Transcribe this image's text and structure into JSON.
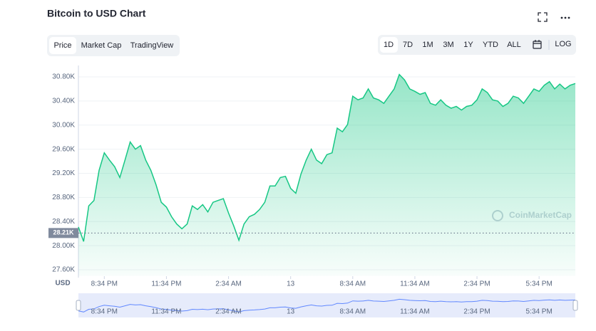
{
  "chart_data": {
    "type": "line",
    "title": "Bitcoin to USD Chart",
    "tabs": [
      "Price",
      "Market Cap",
      "TradingView"
    ],
    "ranges": [
      "1D",
      "7D",
      "1M",
      "3M",
      "1Y",
      "YTD",
      "ALL"
    ],
    "log_label": "LOG",
    "log_scale": false,
    "currency": "USD",
    "watermark": "CoinMarketCap",
    "series": [
      {
        "name": "Price",
        "color": "#16c784",
        "values": [
          28310,
          28070,
          28660,
          28750,
          29250,
          29540,
          29420,
          29310,
          29130,
          29420,
          29720,
          29600,
          29660,
          29420,
          29250,
          29010,
          28720,
          28640,
          28480,
          28360,
          28280,
          28360,
          28660,
          28600,
          28680,
          28560,
          28720,
          28750,
          28780,
          28540,
          28330,
          28090,
          28360,
          28480,
          28520,
          28600,
          28720,
          28990,
          28990,
          29130,
          29150,
          28950,
          28870,
          29190,
          29420,
          29600,
          29420,
          29360,
          29510,
          29540,
          29950,
          29890,
          30010,
          30480,
          30420,
          30450,
          30600,
          30450,
          30420,
          30360,
          30480,
          30600,
          30840,
          30750,
          30600,
          30560,
          30510,
          30540,
          30360,
          30330,
          30420,
          30330,
          30280,
          30310,
          30250,
          30310,
          30330,
          30420,
          30600,
          30540,
          30420,
          30400,
          30310,
          30360,
          30480,
          30450,
          30360,
          30480,
          30600,
          30560,
          30660,
          30720,
          30600,
          30680,
          30600,
          30660,
          30690
        ]
      }
    ],
    "current": {
      "value": 28210,
      "label": "28.21K"
    },
    "xlim": [
      0,
      96
    ],
    "xticks": [
      {
        "value": 5,
        "label": "8:34 PM"
      },
      {
        "value": 17,
        "label": "11:34 PM"
      },
      {
        "value": 29,
        "label": "2:34 AM"
      },
      {
        "value": 41,
        "label": "13"
      },
      {
        "value": 53,
        "label": "8:34 AM"
      },
      {
        "value": 65,
        "label": "11:34 AM"
      },
      {
        "value": 77,
        "label": "2:34 PM"
      },
      {
        "value": 89,
        "label": "5:34 PM"
      }
    ],
    "ylim": [
      27500,
      30900
    ],
    "yticks": [
      {
        "value": 27600,
        "label": "27.60K"
      },
      {
        "value": 28000,
        "label": "28.00K"
      },
      {
        "value": 28400,
        "label": "28.40K"
      },
      {
        "value": 28800,
        "label": "28.80K"
      },
      {
        "value": 29200,
        "label": "29.20K"
      },
      {
        "value": 29600,
        "label": "29.60K"
      },
      {
        "value": 30000,
        "label": "30.00K"
      },
      {
        "value": 30400,
        "label": "30.40K"
      },
      {
        "value": 30800,
        "label": "30.80K"
      }
    ],
    "grid": true
  }
}
